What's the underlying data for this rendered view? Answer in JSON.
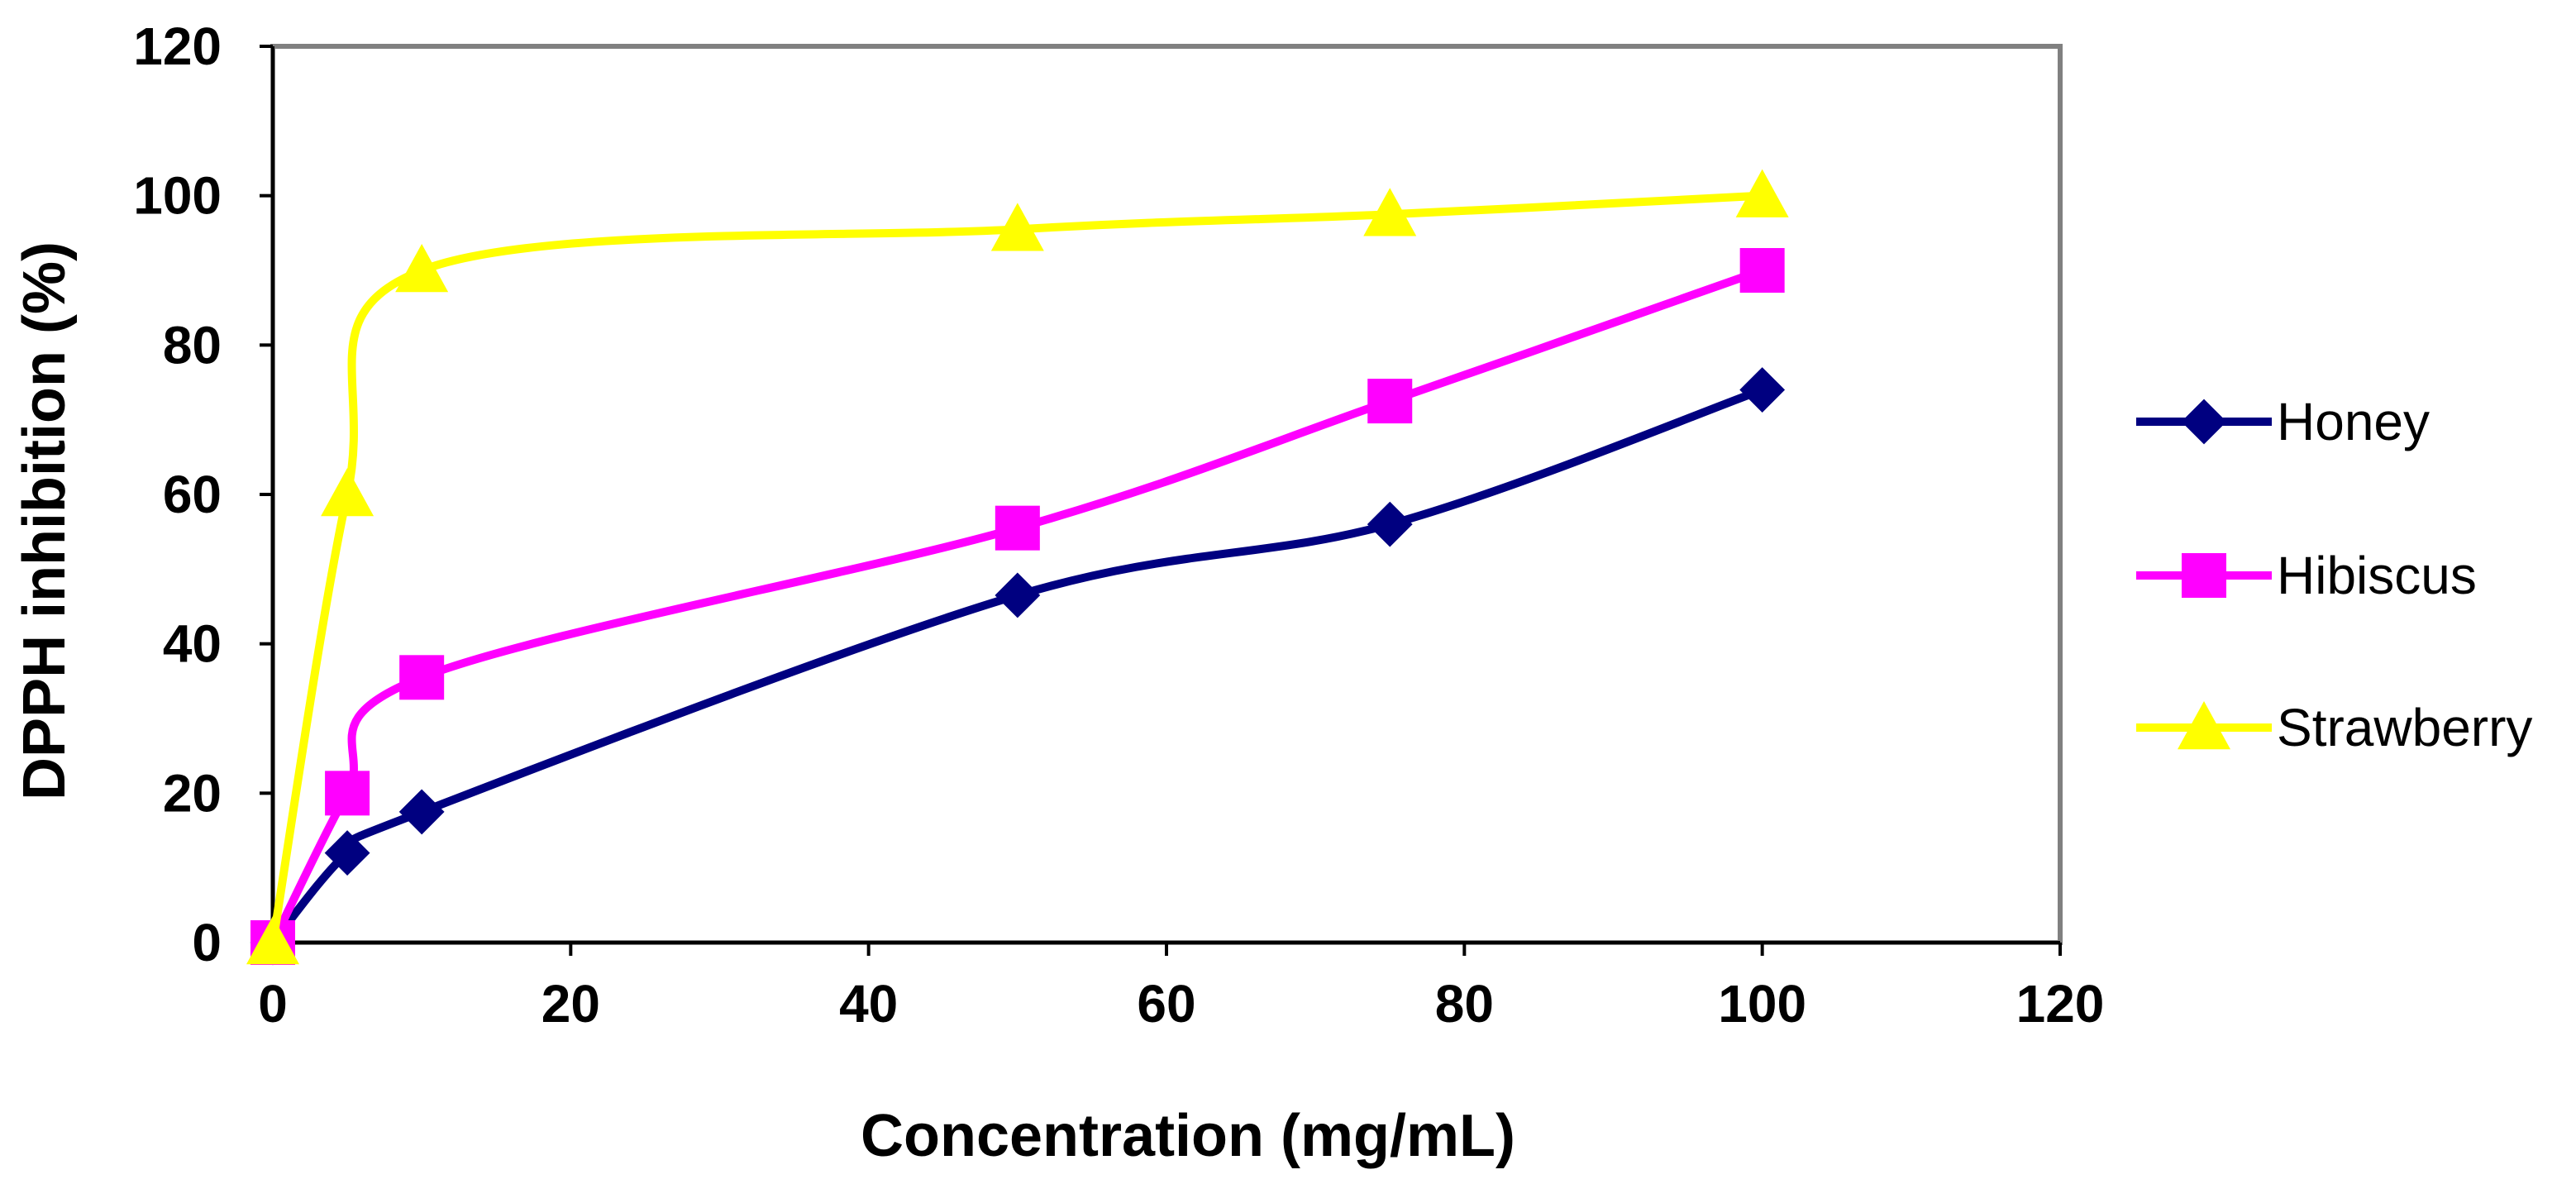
{
  "chart_data": {
    "type": "line",
    "title": "",
    "xlabel": "Concentration (mg/mL)",
    "ylabel": "DPPH inhibition (%)",
    "xlim": [
      0,
      120
    ],
    "ylim": [
      0,
      120
    ],
    "xticks": [
      0,
      20,
      40,
      60,
      80,
      100,
      120
    ],
    "yticks": [
      0,
      20,
      40,
      60,
      80,
      100,
      120
    ],
    "grid": false,
    "legend_position": "right",
    "x": [
      0,
      5,
      10,
      50,
      75,
      100
    ],
    "series": [
      {
        "name": "Honey",
        "color": "#000080",
        "marker": "diamond",
        "values": [
          0,
          12,
          17.5,
          46.5,
          56,
          74
        ]
      },
      {
        "name": "Hibiscus",
        "color": "#FF00FF",
        "marker": "square",
        "values": [
          0,
          20,
          35.5,
          55.5,
          72.5,
          90
        ]
      },
      {
        "name": "Strawberry",
        "color": "#FFFF00",
        "marker": "triangle",
        "values": [
          0,
          60,
          90,
          95.5,
          97.5,
          100
        ]
      }
    ]
  }
}
